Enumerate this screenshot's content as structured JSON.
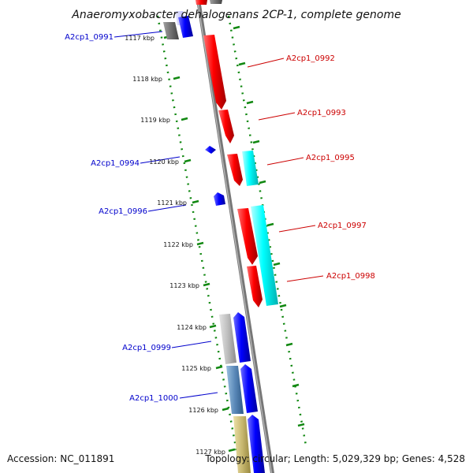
{
  "title": "Anaeromyxobacter dehalogenans 2CP-1, complete genome",
  "footer": {
    "accession": "Accession: NC_011891",
    "summary": "Topology: circular; Length: 5,029,329 bp; Genes: 4,528"
  },
  "colors": {
    "label_left": "#0000cc",
    "label_right": "#cc0000",
    "backbone": "#888888",
    "tick_dots": "#118811",
    "red_gene": "#ff0000",
    "cyan_gene": "#00ffff",
    "blue_gene": "#0000ff"
  },
  "ticks": [
    "1117 kbp",
    "1118 kbp",
    "1119 kbp",
    "1120 kbp",
    "1121 kbp",
    "1122 kbp",
    "1123 kbp",
    "1124 kbp",
    "1125 kbp",
    "1126 kbp",
    "1127 kbp"
  ],
  "genes_left": [
    "A2cp1_0991",
    "A2cp1_0994",
    "A2cp1_0996",
    "A2cp1_0999",
    "A2cp1_1000"
  ],
  "genes_right": [
    "A2cp1_0992",
    "A2cp1_0993",
    "A2cp1_0995",
    "A2cp1_0997",
    "A2cp1_0998"
  ]
}
